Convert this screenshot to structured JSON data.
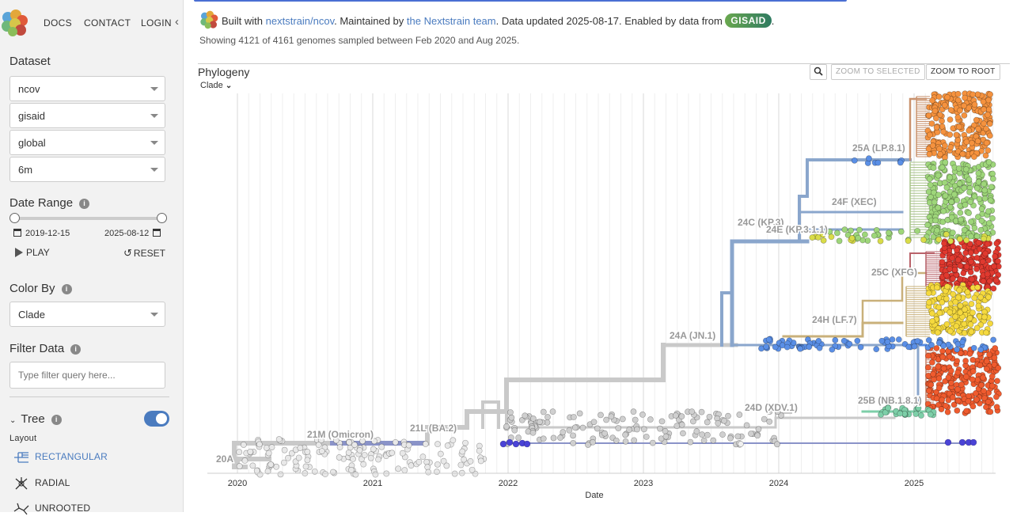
{
  "nav": {
    "docs": "DOCS",
    "contact": "CONTACT",
    "login": "LOGIN",
    "collapse": "‹"
  },
  "sidebar": {
    "dataset_title": "Dataset",
    "dataset_selects": [
      "ncov",
      "gisaid",
      "global",
      "6m"
    ],
    "date_range_title": "Date Range",
    "date_start": "2019-12-15",
    "date_end": "2025-08-12",
    "play": "PLAY",
    "reset": "RESET",
    "color_by_title": "Color By",
    "color_by_value": "Clade",
    "filter_title": "Filter Data",
    "filter_placeholder": "Type filter query here...",
    "tree_title": "Tree",
    "tree_toggle_on": true,
    "layout_label": "Layout",
    "layouts": [
      "RECTANGULAR",
      "RADIAL",
      "UNROOTED"
    ],
    "layout_selected": "RECTANGULAR"
  },
  "header": {
    "built_with": "Built with ",
    "build_link": "nextstrain/ncov",
    "maintained_by": ". Maintained by ",
    "team_link": "the Nextstrain team",
    "data_updated": ". Data updated 2025-08-17. Enabled by data from ",
    "gisaid": "GISAID",
    "period": ".",
    "summary": "Showing 4121 of 4161 genomes sampled between Feb 2020 and Aug 2025."
  },
  "panel": {
    "title": "Phylogeny",
    "branch_label": "Clade",
    "zoom_selected": "ZOOM TO SELECTED",
    "zoom_root": "ZOOM TO ROOT",
    "search_icon": "magnifier-icon"
  },
  "tree": {
    "x_axis_label": "Date",
    "years": [
      "2020",
      "2021",
      "2022",
      "2023",
      "2024",
      "2025"
    ],
    "clade_labels": [
      {
        "text": "20A",
        "color": "#999999"
      },
      {
        "text": "21M (Omicron)",
        "color": "#999999"
      },
      {
        "text": "21L (BA.2)",
        "color": "#999999"
      },
      {
        "text": "24A (JN.1)",
        "color": "#999999"
      },
      {
        "text": "24D (XDV.1)",
        "color": "#999999"
      },
      {
        "text": "24C (KP.3)",
        "color": "#999999"
      },
      {
        "text": "24E (KP.3.1.1)",
        "color": "#999999"
      },
      {
        "text": "24F (XEC)",
        "color": "#999999"
      },
      {
        "text": "25A (LP.8.1)",
        "color": "#999999"
      },
      {
        "text": "25C (XFG)",
        "color": "#999999"
      },
      {
        "text": "24H (LF.7)",
        "color": "#999999"
      },
      {
        "text": "25B (NB.1.8.1)",
        "color": "#999999"
      }
    ],
    "clade_colors": {
      "early": "#c9c9c9",
      "omicron": "#8a93c8",
      "recent_blue": "#5a8fe6",
      "orange": "#f5923e",
      "green": "#9ed67a",
      "red": "#e0392f",
      "yellow": "#f5d93e",
      "redorange": "#ef5b2e",
      "teal": "#7dcfa8",
      "darkblue": "#4a43d6"
    }
  }
}
